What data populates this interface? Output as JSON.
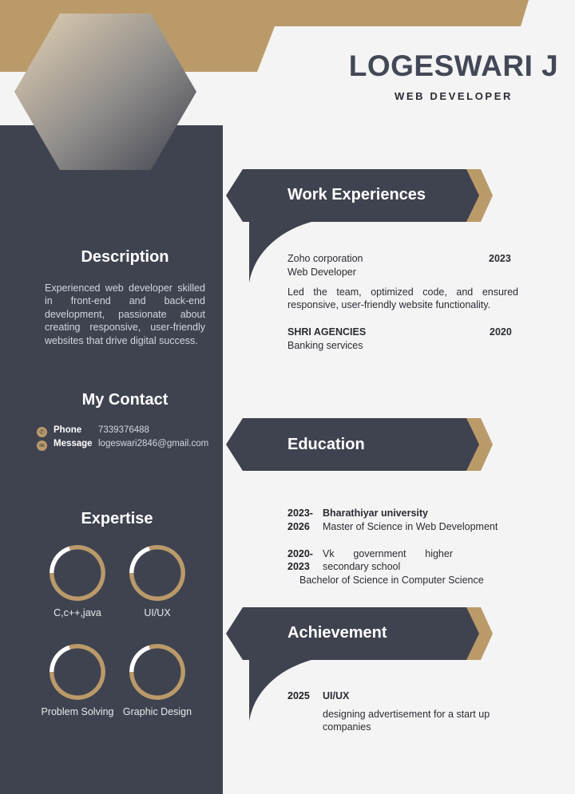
{
  "header": {
    "name": "LOGESWARI J",
    "role": "WEB DEVELOPER"
  },
  "colors": {
    "navy": "#3f4350",
    "gold": "#bb9a6a",
    "background": "#f4f4f4"
  },
  "description": {
    "title": "Description",
    "text": "Experienced web developer skilled in front-end and back-end development, passionate about creating responsive, user-friendly websites that drive digital success."
  },
  "contact": {
    "title": "My Contact",
    "items": [
      {
        "icon": "phone-icon",
        "label": "Phone",
        "value": "7339376488"
      },
      {
        "icon": "mail-icon",
        "label": "Message",
        "value": "logeswari2846@gmail.com"
      }
    ]
  },
  "expertise": {
    "title": "Expertise",
    "skills": [
      {
        "name": "C,c++,java",
        "level": 0.8
      },
      {
        "name": "UI/UX",
        "level": 0.8
      },
      {
        "name": "Problem Solving",
        "level": 0.8
      },
      {
        "name": "Graphic Design",
        "level": 0.8
      }
    ]
  },
  "work": {
    "title": "Work Experiences",
    "jobs": [
      {
        "company": "Zoho corporation",
        "year": "2023",
        "position": "Web Developer",
        "details": "Led the team, optimized code, and ensured responsive, user-friendly website functionality."
      },
      {
        "company": "SHRI AGENCIES",
        "year": "2020",
        "position": "Banking services"
      }
    ]
  },
  "education": {
    "title": "Education",
    "items": [
      {
        "year_start": "2023-",
        "year_end": "2026",
        "institution": "Bharathiyar university",
        "degree": "Master of Science in Web Development"
      },
      {
        "year_start": "2020-",
        "year_end": "2023",
        "institution_line1": "Vk government higher",
        "institution_line2": "secondary school",
        "degree": "Bachelor of Science in Computer Science"
      }
    ]
  },
  "achievement": {
    "title": "Achievement",
    "year": "2025",
    "name": "UI/UX",
    "details": "designing advertisement for a start up companies"
  }
}
